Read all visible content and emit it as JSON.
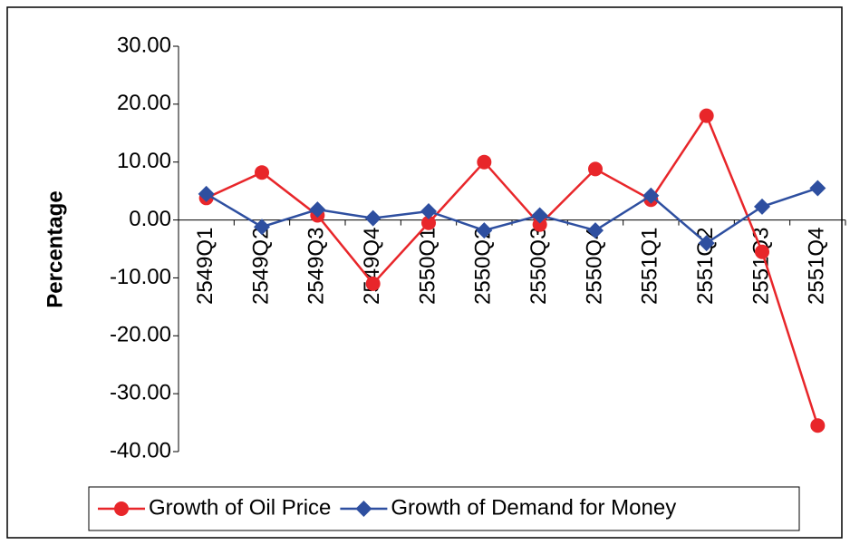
{
  "chart_data": {
    "type": "line",
    "y_label": "Percentage",
    "categories": [
      "2549Q1",
      "2549Q2",
      "2549Q3",
      "2549Q4",
      "2550Q1",
      "2550Q2",
      "2550Q3",
      "2550Q4",
      "2551Q1",
      "2551Q2",
      "2551Q3",
      "2551Q4"
    ],
    "series": [
      {
        "name": "Growth of Oil Price",
        "color": "#e8262a",
        "marker": "circle",
        "values": [
          3.8,
          8.2,
          0.8,
          -11.0,
          -0.5,
          10.0,
          -0.8,
          8.8,
          3.5,
          18.0,
          -5.5,
          -35.5
        ]
      },
      {
        "name": "Growth of Demand for Money",
        "color": "#2e4fa0",
        "marker": "diamond",
        "values": [
          4.5,
          -1.2,
          1.8,
          0.3,
          1.5,
          -1.8,
          0.8,
          -1.8,
          4.2,
          -4.0,
          2.3,
          5.5
        ]
      }
    ],
    "ylim": [
      -40,
      30
    ],
    "yticks": [
      {
        "value": -40,
        "label": "-40.00"
      },
      {
        "value": -30,
        "label": "-30.00"
      },
      {
        "value": -20,
        "label": "-20.00"
      },
      {
        "value": -10,
        "label": "-10.00"
      },
      {
        "value": 0,
        "label": "0.00"
      },
      {
        "value": 10,
        "label": "10.00"
      },
      {
        "value": 20,
        "label": "20.00"
      },
      {
        "value": 30,
        "label": "30.00"
      }
    ],
    "legend": "bottom"
  }
}
